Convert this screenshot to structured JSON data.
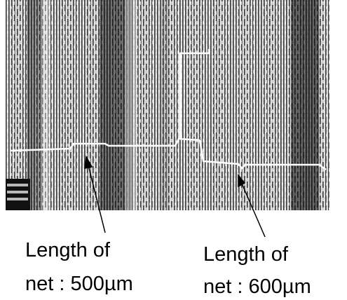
{
  "labels": [
    {
      "lines": [
        "Length of",
        "net : 500µm"
      ]
    },
    {
      "lines": [
        "Length of",
        "net : 600µm"
      ]
    }
  ]
}
